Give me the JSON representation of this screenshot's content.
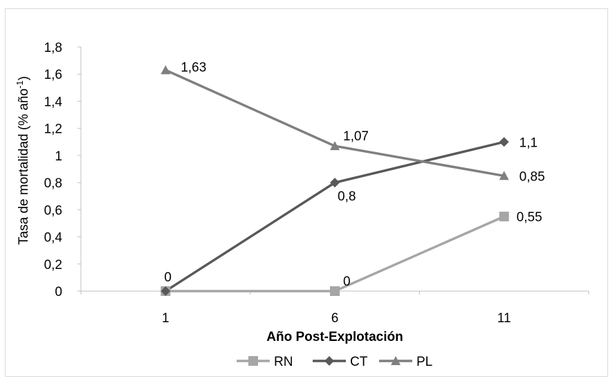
{
  "chart_data": {
    "type": "line",
    "x": [
      "1",
      "6",
      "11"
    ],
    "xlabel": "Año Post-Explotación",
    "ylabel": {
      "main": "Tasa de mortalidad (% año",
      "sup": "-1",
      "close": ")"
    },
    "ylim": [
      0,
      1.8
    ],
    "yticks": [
      "0",
      "0,2",
      "0,4",
      "0,6",
      "0,8",
      "1",
      "1,2",
      "1,4",
      "1,6",
      "1,8"
    ],
    "grid": false,
    "legend_position": "bottom",
    "series": [
      {
        "name": "RN",
        "values": [
          0,
          0,
          0.55
        ],
        "labels": [
          "",
          "0",
          "0,55"
        ],
        "color": "#a6a6a6",
        "marker": "square"
      },
      {
        "name": "CT",
        "values": [
          0,
          0.8,
          1.1
        ],
        "labels": [
          "0",
          "0,8",
          "1,1"
        ],
        "color": "#595959",
        "marker": "diamond"
      },
      {
        "name": "PL",
        "values": [
          1.63,
          1.07,
          0.85
        ],
        "labels": [
          "1,63",
          "1,07",
          "0,85"
        ],
        "color": "#7f7f7f",
        "marker": "triangle"
      }
    ]
  }
}
